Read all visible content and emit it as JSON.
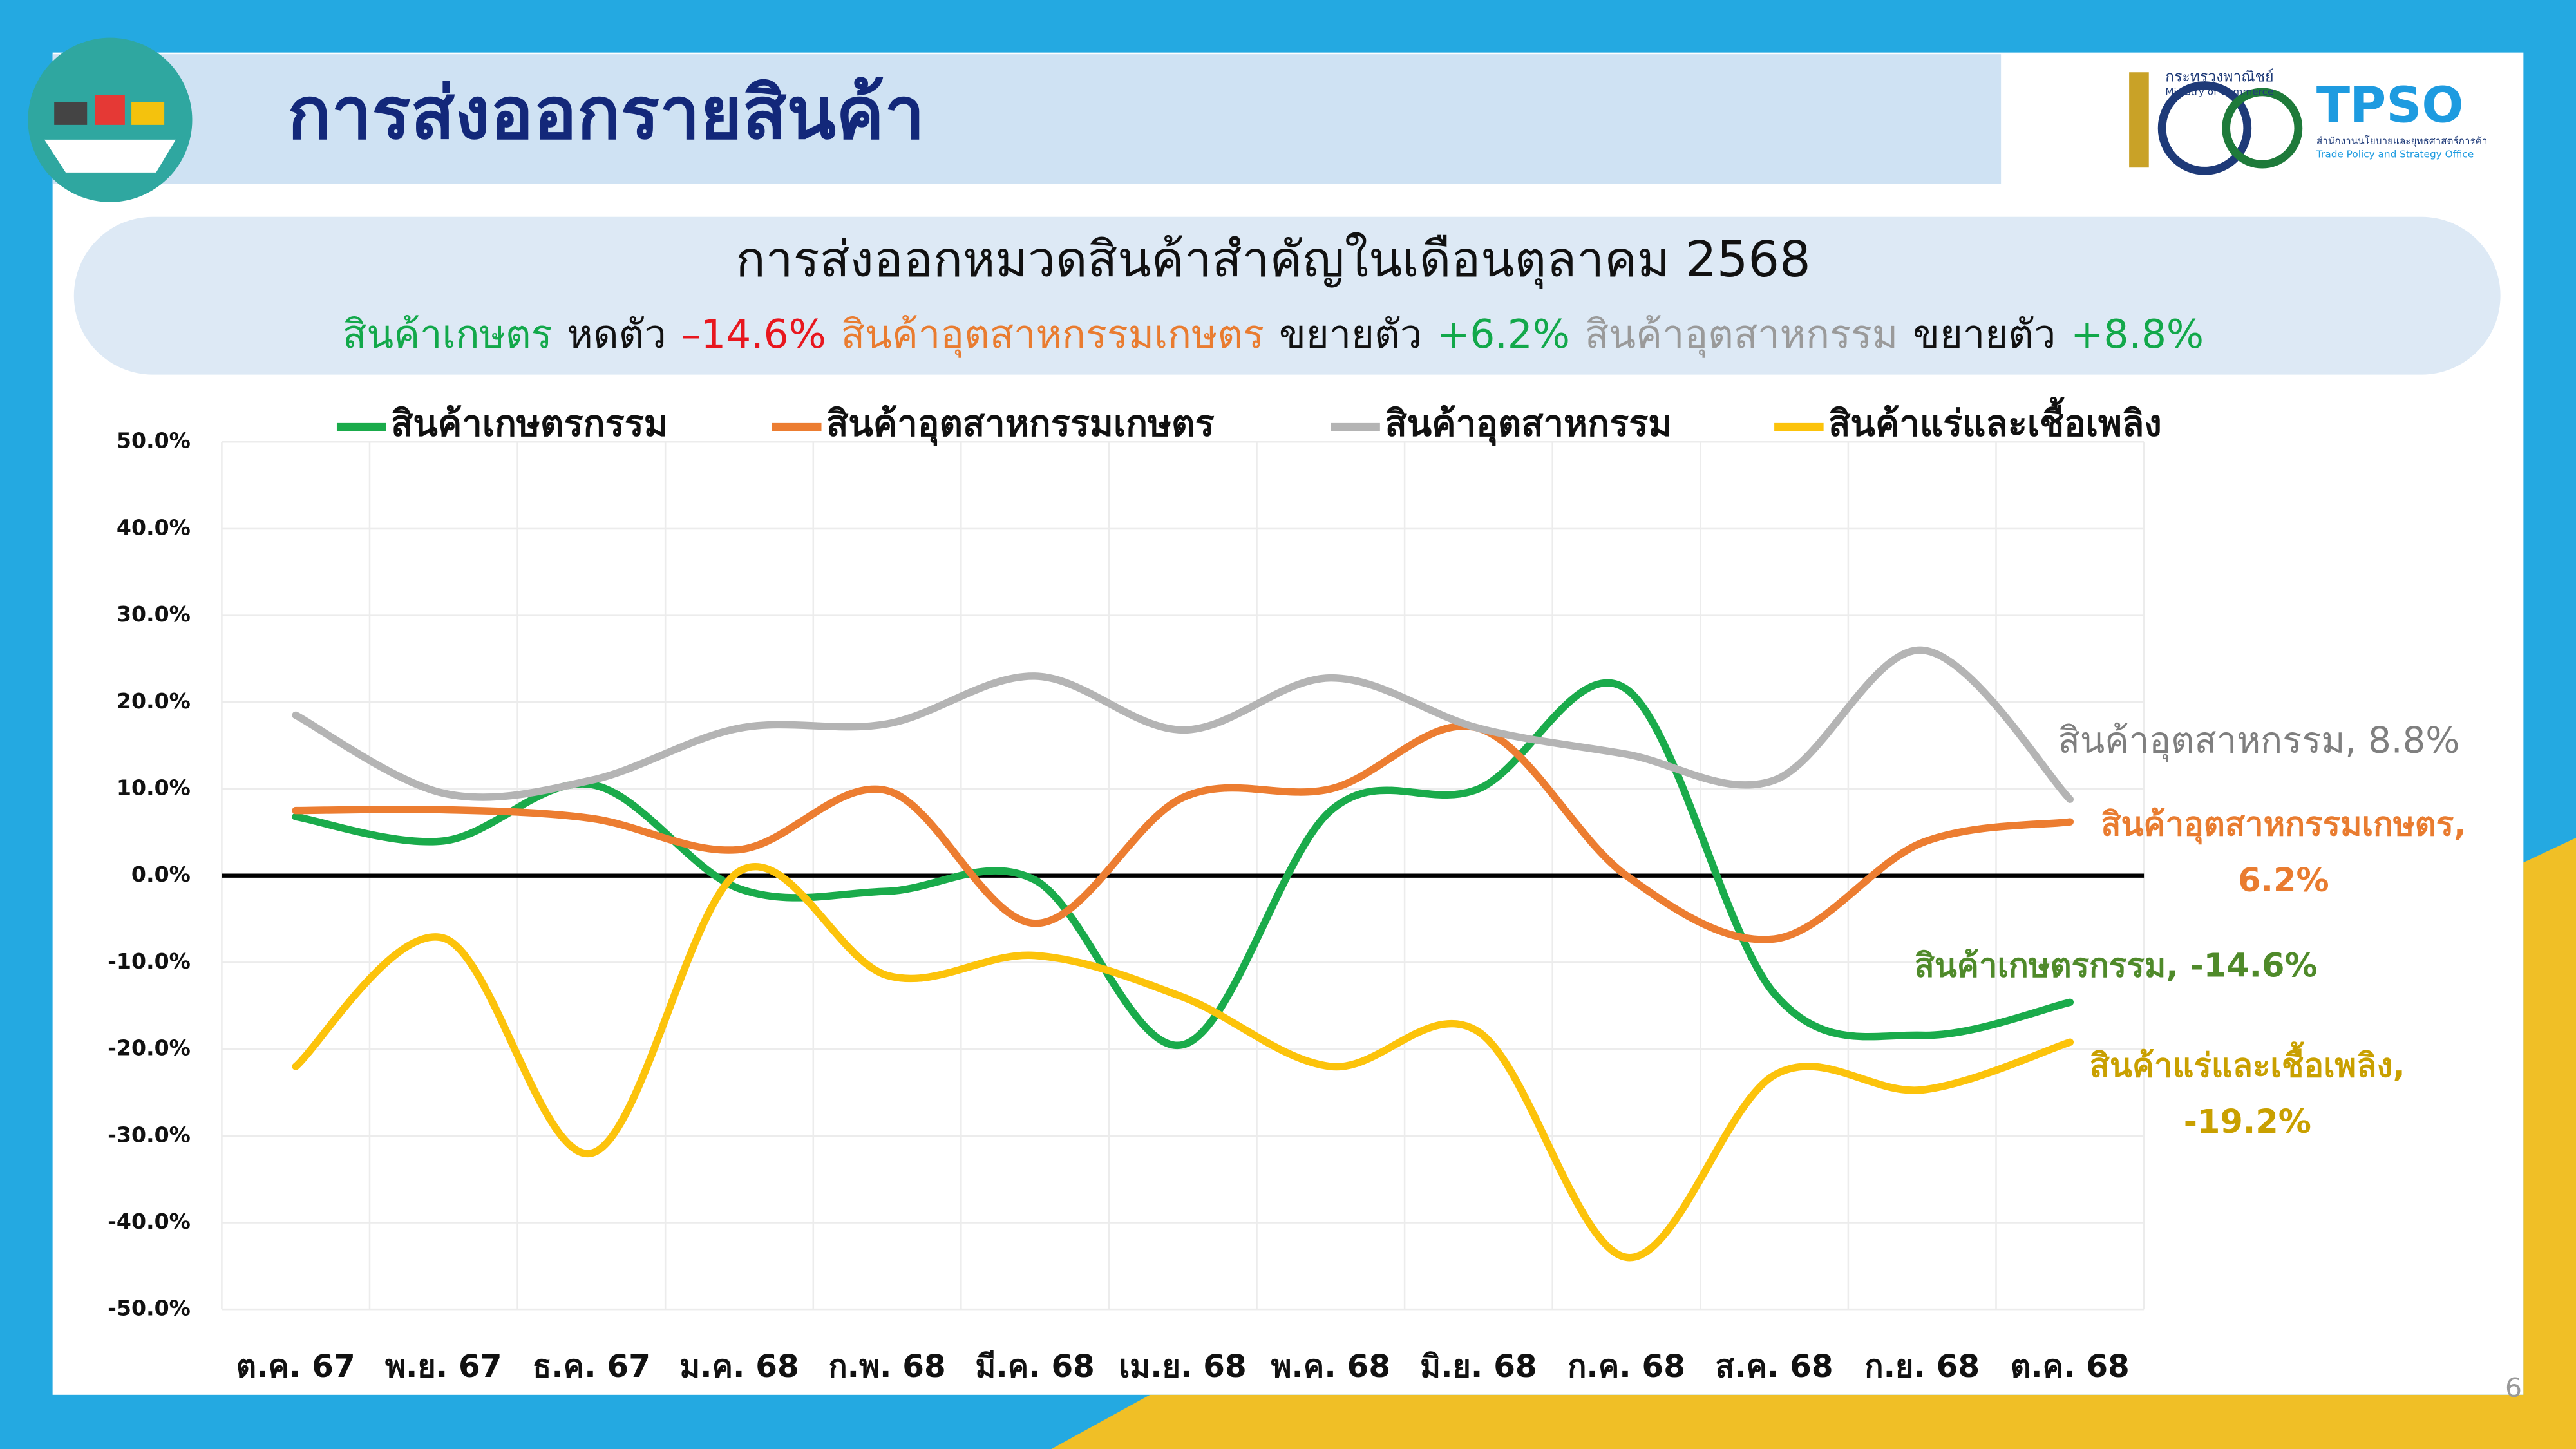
{
  "header": {
    "title": "การส่งออกรายสินค้า",
    "ministry_th": "กระทรวงพาณิชย์",
    "ministry_en": "Ministry of Commerce",
    "agency": "TPSO",
    "agency_th": "สำนักงานนโยบายและยุทธศาสตร์การค้า",
    "agency_en": "Trade Policy and Strategy Office"
  },
  "summary": {
    "heading": "การส่งออกหมวดสินค้าสำคัญในเดือนตุลาคม 2568",
    "parts": [
      {
        "text": "สินค้าเกษตร",
        "color": "#12a84a"
      },
      {
        "text": "หดตัว",
        "color": "#111111"
      },
      {
        "text": "–14.6%",
        "color": "#e8171e"
      },
      {
        "text": "สินค้าอุตสาหกรรมเกษตร",
        "color": "#e97c30"
      },
      {
        "text": "ขยายตัว",
        "color": "#111111"
      },
      {
        "text": "+6.2%",
        "color": "#12a84a"
      },
      {
        "text": "สินค้าอุตสาหกรรม",
        "color": "#9a9a9a"
      },
      {
        "text": "ขยายตัว",
        "color": "#111111"
      },
      {
        "text": "+8.8%",
        "color": "#12a84a"
      }
    ]
  },
  "chart_data": {
    "type": "line",
    "categories": [
      "ต.ค. 67",
      "พ.ย. 67",
      "ธ.ค. 67",
      "ม.ค. 68",
      "ก.พ. 68",
      "มี.ค. 68",
      "เม.ย. 68",
      "พ.ค. 68",
      "มิ.ย. 68",
      "ก.ค. 68",
      "ส.ค. 68",
      "ก.ย. 68",
      "ต.ค. 68"
    ],
    "series": [
      {
        "name": "สินค้าเกษตรกรรม",
        "color": "#1aab4b",
        "values": [
          6.8,
          4.0,
          10.5,
          -1.5,
          -1.8,
          -0.5,
          -19.5,
          7.5,
          10.0,
          21.5,
          -13.6,
          -18.4,
          -14.6
        ]
      },
      {
        "name": "สินค้าอุตสาหกรรมเกษตร",
        "color": "#ec7d31",
        "values": [
          7.5,
          7.6,
          6.6,
          3.0,
          9.8,
          -5.5,
          9.0,
          10.0,
          17.0,
          0.0,
          -7.3,
          3.8,
          6.2
        ]
      },
      {
        "name": "สินค้าอุตสาหกรรม",
        "color": "#b4b4b4",
        "values": [
          18.5,
          9.5,
          11.0,
          17.0,
          17.5,
          23.0,
          16.8,
          22.8,
          17.0,
          14.0,
          11.0,
          26.0,
          8.8
        ]
      },
      {
        "name": "สินค้าแร่และเชื้อเพลิง",
        "color": "#fcc30b",
        "values": [
          -22.0,
          -7.2,
          -32.0,
          0.5,
          -11.5,
          -9.2,
          -14.0,
          -22.0,
          -18.0,
          -44.0,
          -23.0,
          -24.7,
          -19.2
        ]
      }
    ],
    "ylim": [
      -50,
      50
    ],
    "yticks": [
      {
        "value": -50,
        "label": "-50.0%"
      },
      {
        "value": -40,
        "label": "-40.0%"
      },
      {
        "value": -30,
        "label": "-30.0%"
      },
      {
        "value": -20,
        "label": "-20.0%"
      },
      {
        "value": -10,
        "label": "-10.0%"
      },
      {
        "value": 0,
        "label": "0.0%"
      },
      {
        "value": 10,
        "label": "10.0%"
      },
      {
        "value": 20,
        "label": "20.0%"
      },
      {
        "value": 30,
        "label": "30.0%"
      },
      {
        "value": 40,
        "label": "40.0%"
      },
      {
        "value": 50,
        "label": "50.0%"
      }
    ],
    "grid": true,
    "legend": "top",
    "annotations": [
      {
        "lines": [
          "สินค้าอุตสาหกรรม, 8.8%"
        ],
        "color": "#7f7f7f"
      },
      {
        "lines": [
          "สินค้าอุตสาหกรรมเกษตร,",
          "6.2%"
        ],
        "color": "#e97c30"
      },
      {
        "lines": [
          "สินค้าเกษตรกรรม, -14.6%"
        ],
        "color": "#4f8a2a"
      },
      {
        "lines": [
          "สินค้าแร่และเชื้อเพลิง,",
          "-19.2%"
        ],
        "color": "#c9a000"
      }
    ]
  },
  "page_number": "6"
}
